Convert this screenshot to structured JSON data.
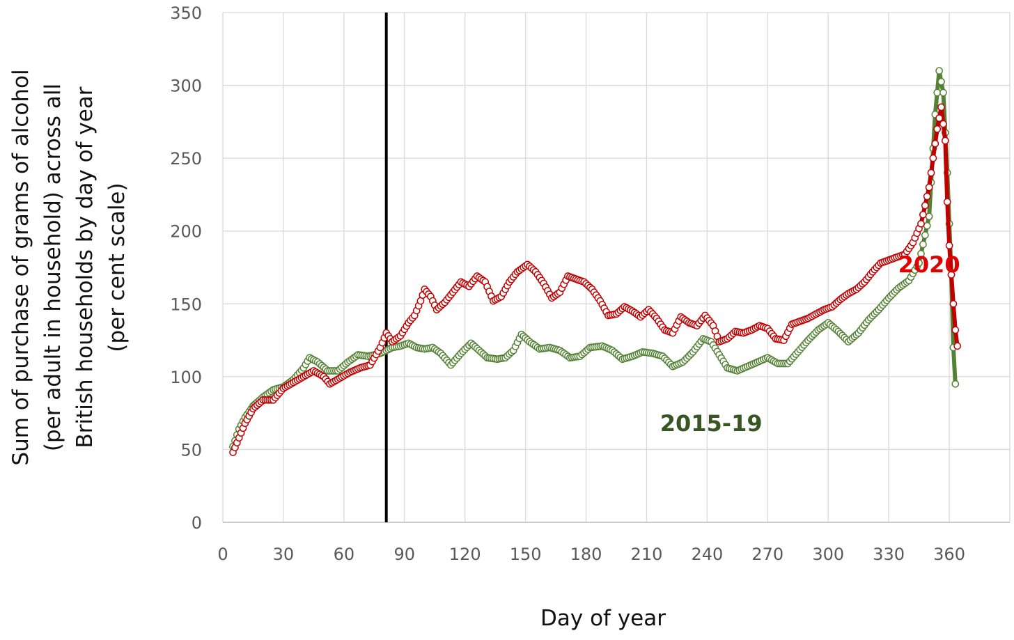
{
  "chart_data": {
    "type": "line",
    "title": "",
    "xlabel": "Day of year",
    "ylabel_lines": [
      "Sum of purchase of grams of alcohol",
      "(per adult in household) across all",
      "British households by day of year",
      "(per cent scale)"
    ],
    "xlim": [
      0,
      390
    ],
    "ylim": [
      0,
      350
    ],
    "xticks": [
      0,
      30,
      60,
      90,
      120,
      150,
      180,
      210,
      240,
      270,
      300,
      330,
      360
    ],
    "yticks": [
      0,
      50,
      100,
      150,
      200,
      250,
      300,
      350
    ],
    "grid": true,
    "vertical_marker_x": 81,
    "series": [
      {
        "name": "2015-19",
        "color": "#548235",
        "label_color": "#375623",
        "label_pos": [
          242,
          68
        ],
        "points": [
          [
            5,
            52
          ],
          [
            8,
            64
          ],
          [
            11,
            72
          ],
          [
            15,
            80
          ],
          [
            20,
            86
          ],
          [
            25,
            91
          ],
          [
            30,
            93
          ],
          [
            35,
            98
          ],
          [
            40,
            106
          ],
          [
            43,
            113
          ],
          [
            47,
            110
          ],
          [
            52,
            104
          ],
          [
            57,
            104
          ],
          [
            62,
            110
          ],
          [
            67,
            115
          ],
          [
            72,
            114
          ],
          [
            78,
            116
          ],
          [
            84,
            120
          ],
          [
            88,
            121
          ],
          [
            92,
            123
          ],
          [
            96,
            120
          ],
          [
            100,
            119
          ],
          [
            104,
            120
          ],
          [
            108,
            116
          ],
          [
            113,
            108
          ],
          [
            118,
            116
          ],
          [
            123,
            123
          ],
          [
            127,
            118
          ],
          [
            131,
            113
          ],
          [
            136,
            112
          ],
          [
            140,
            113
          ],
          [
            144,
            118
          ],
          [
            148,
            129
          ],
          [
            152,
            124
          ],
          [
            157,
            119
          ],
          [
            162,
            120
          ],
          [
            167,
            118
          ],
          [
            172,
            113
          ],
          [
            177,
            114
          ],
          [
            182,
            120
          ],
          [
            188,
            121
          ],
          [
            193,
            118
          ],
          [
            198,
            112
          ],
          [
            203,
            114
          ],
          [
            208,
            117
          ],
          [
            213,
            116
          ],
          [
            218,
            114
          ],
          [
            223,
            107
          ],
          [
            228,
            110
          ],
          [
            233,
            117
          ],
          [
            238,
            126
          ],
          [
            242,
            124
          ],
          [
            246,
            115
          ],
          [
            250,
            106
          ],
          [
            255,
            104
          ],
          [
            260,
            107
          ],
          [
            265,
            110
          ],
          [
            270,
            113
          ],
          [
            275,
            109
          ],
          [
            280,
            109
          ],
          [
            285,
            117
          ],
          [
            290,
            125
          ],
          [
            295,
            132
          ],
          [
            300,
            137
          ],
          [
            305,
            131
          ],
          [
            310,
            124
          ],
          [
            315,
            130
          ],
          [
            320,
            139
          ],
          [
            325,
            146
          ],
          [
            330,
            154
          ],
          [
            335,
            161
          ],
          [
            340,
            166
          ],
          [
            345,
            178
          ],
          [
            350,
            210
          ],
          [
            353,
            280
          ],
          [
            355,
            310
          ],
          [
            357,
            295
          ],
          [
            359,
            240
          ],
          [
            361,
            170
          ],
          [
            362,
            120
          ],
          [
            363,
            95
          ]
        ]
      },
      {
        "name": "2020",
        "color": "#C00000",
        "label_color": "#E00000",
        "label_pos": [
          350,
          177
        ],
        "points": [
          [
            5,
            48
          ],
          [
            8,
            58
          ],
          [
            11,
            68
          ],
          [
            15,
            78
          ],
          [
            20,
            84
          ],
          [
            25,
            84
          ],
          [
            30,
            92
          ],
          [
            35,
            96
          ],
          [
            40,
            100
          ],
          [
            45,
            104
          ],
          [
            50,
            100
          ],
          [
            53,
            95
          ],
          [
            58,
            99
          ],
          [
            63,
            103
          ],
          [
            68,
            106
          ],
          [
            73,
            108
          ],
          [
            78,
            120
          ],
          [
            81,
            130
          ],
          [
            84,
            124
          ],
          [
            88,
            128
          ],
          [
            92,
            137
          ],
          [
            95,
            142
          ],
          [
            98,
            152
          ],
          [
            100,
            160
          ],
          [
            103,
            155
          ],
          [
            106,
            146
          ],
          [
            110,
            151
          ],
          [
            114,
            158
          ],
          [
            118,
            165
          ],
          [
            122,
            162
          ],
          [
            126,
            169
          ],
          [
            130,
            165
          ],
          [
            134,
            152
          ],
          [
            138,
            155
          ],
          [
            142,
            165
          ],
          [
            146,
            172
          ],
          [
            151,
            177
          ],
          [
            155,
            172
          ],
          [
            159,
            164
          ],
          [
            163,
            154
          ],
          [
            167,
            158
          ],
          [
            171,
            169
          ],
          [
            175,
            167
          ],
          [
            179,
            165
          ],
          [
            183,
            160
          ],
          [
            187,
            152
          ],
          [
            191,
            142
          ],
          [
            195,
            143
          ],
          [
            199,
            148
          ],
          [
            203,
            145
          ],
          [
            207,
            141
          ],
          [
            211,
            146
          ],
          [
            215,
            140
          ],
          [
            219,
            132
          ],
          [
            223,
            130
          ],
          [
            227,
            141
          ],
          [
            231,
            137
          ],
          [
            235,
            135
          ],
          [
            239,
            142
          ],
          [
            243,
            135
          ],
          [
            246,
            124
          ],
          [
            250,
            126
          ],
          [
            254,
            131
          ],
          [
            258,
            130
          ],
          [
            262,
            132
          ],
          [
            266,
            135
          ],
          [
            270,
            133
          ],
          [
            274,
            126
          ],
          [
            278,
            125
          ],
          [
            282,
            136
          ],
          [
            286,
            138
          ],
          [
            290,
            140
          ],
          [
            294,
            143
          ],
          [
            298,
            146
          ],
          [
            302,
            148
          ],
          [
            306,
            153
          ],
          [
            310,
            157
          ],
          [
            314,
            160
          ],
          [
            318,
            165
          ],
          [
            322,
            172
          ],
          [
            326,
            178
          ],
          [
            330,
            180
          ],
          [
            334,
            182
          ],
          [
            338,
            184
          ],
          [
            342,
            192
          ],
          [
            346,
            205
          ],
          [
            350,
            230
          ],
          [
            352,
            250
          ],
          [
            354,
            270
          ],
          [
            356,
            285
          ],
          [
            358,
            262
          ],
          [
            359,
            220
          ],
          [
            360,
            190
          ],
          [
            361,
            170
          ],
          [
            362,
            150
          ],
          [
            363,
            132
          ],
          [
            364,
            121
          ]
        ]
      }
    ]
  }
}
